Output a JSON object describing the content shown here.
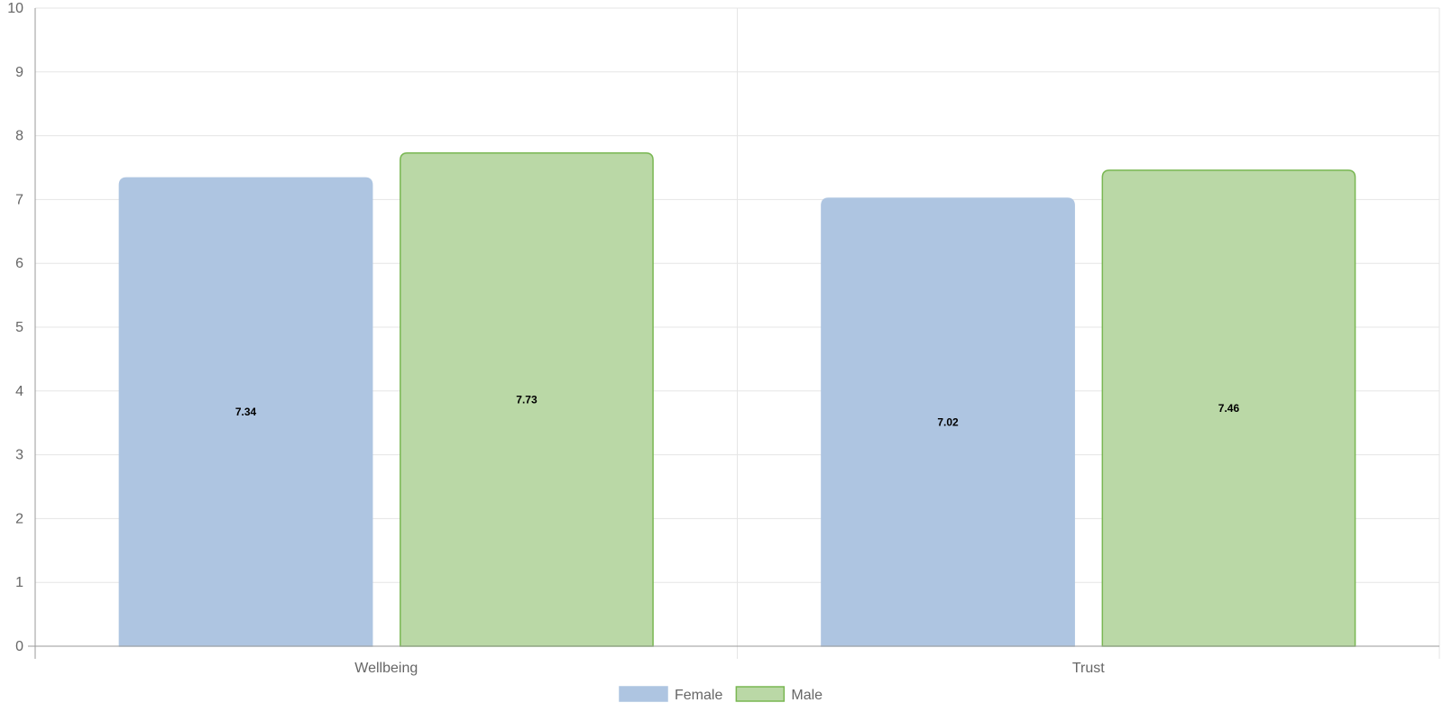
{
  "chart_data": {
    "type": "bar",
    "categories": [
      "Wellbeing",
      "Trust"
    ],
    "series": [
      {
        "name": "Female",
        "values": [
          7.34,
          7.02
        ],
        "fill": "#aec5e1",
        "stroke": "#aec5e1"
      },
      {
        "name": "Male",
        "values": [
          7.73,
          7.46
        ],
        "fill": "#bad8a6",
        "stroke": "#79b752"
      }
    ],
    "ylim": [
      0,
      10
    ],
    "yticks": [
      "0",
      "1",
      "2",
      "3",
      "4",
      "5",
      "6",
      "7",
      "8",
      "9",
      "10"
    ],
    "data_labels": [
      [
        "7.34",
        "7.02"
      ],
      [
        "7.73",
        "7.46"
      ]
    ],
    "grid": true,
    "legend_position": "bottom",
    "colors": {
      "grid": "#e5e5e5",
      "axis": "#9a9a9a",
      "text": "#666666"
    }
  }
}
